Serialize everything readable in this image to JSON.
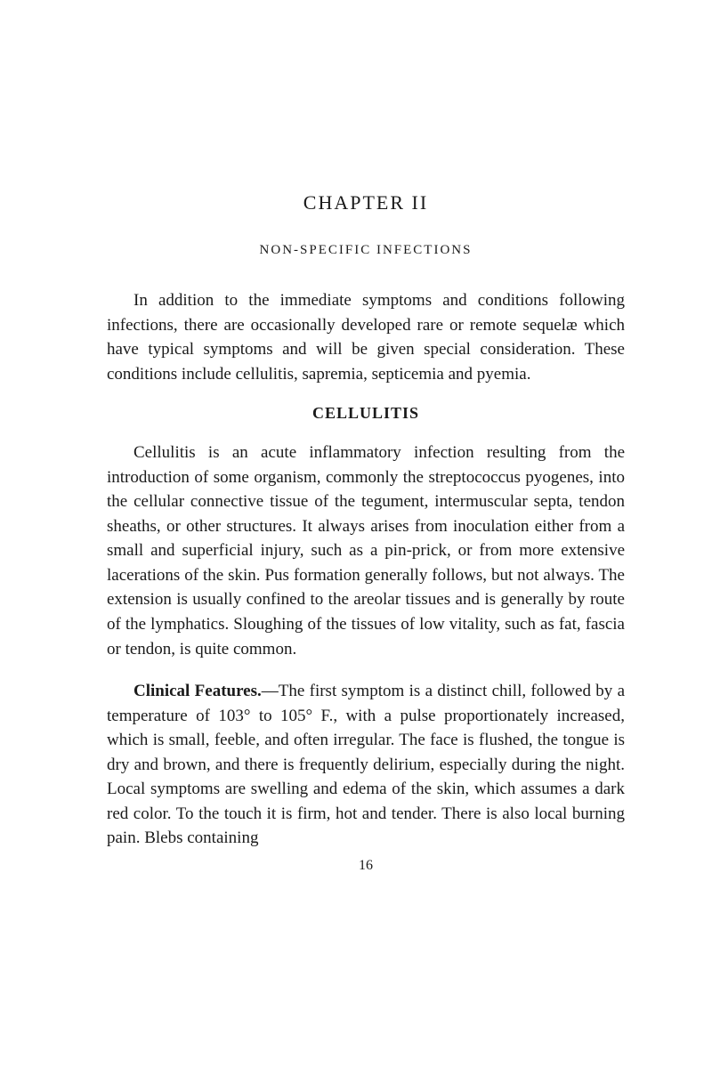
{
  "chapter_title": "CHAPTER II",
  "section_sub": "NON-SPECIFIC INFECTIONS",
  "intro_para": "In addition to the immediate symptoms and conditions following infections, there are occasionally developed rare or remote sequelæ which have typical symptoms and will be given special consideration. These conditions include cellulitis, sapremia, septicemia and pyemia.",
  "heading_1": "CELLULITIS",
  "para_1": "Cellulitis is an acute inflammatory infection resulting from the introduction of some organism, commonly the streptococcus pyogenes, into the cellular connective tissue of the tegument, intermuscular septa, tendon sheaths, or other structures. It always arises from inoculation either from a small and superficial injury, such as a pin-prick, or from more extensive lacerations of the skin. Pus formation generally follows, but not always. The extension is usually confined to the areolar tissues and is generally by route of the lymphatics. Sloughing of the tissues of low vitality, such as fat, fascia or tendon, is quite common.",
  "clinical_label": "Clinical Features.",
  "para_2_rest": "—The first symptom is a distinct chill, followed by a temperature of 103° to 105° F., with a pulse proportionately increased, which is small, feeble, and often irregular. The face is flushed, the tongue is dry and brown, and there is frequently delirium, especially during the night. Local symptoms are swelling and edema of the skin, which assumes a dark red color. To the touch it is firm, hot and tender. There is also local burning pain. Blebs containing",
  "page_number": "16"
}
